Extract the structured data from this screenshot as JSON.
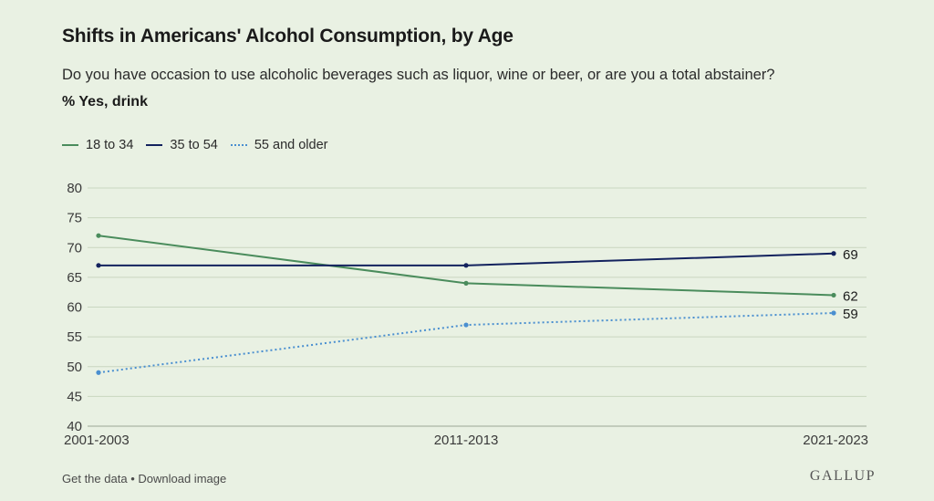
{
  "title": "Shifts in Americans' Alcohol Consumption, by Age",
  "subtitle": "Do you have occasion to use alcoholic beverages such as liquor, wine or beer, or are you a total abstainer?",
  "unit_label": "% Yes, drink",
  "footer": {
    "get_data": "Get the data",
    "separator": "•",
    "download": "Download image"
  },
  "logo": "GALLUP",
  "colors": {
    "background": "#e9f1e3",
    "series_18_34": "#4a8c5c",
    "series_35_54": "#13225e",
    "series_55_plus": "#4a8fd0",
    "grid": "#c9d6c0"
  },
  "chart_data": {
    "type": "line",
    "categories": [
      "2001-2003",
      "2011-2013",
      "2021-2023"
    ],
    "ylim": [
      40,
      80
    ],
    "yticks": [
      40,
      45,
      50,
      55,
      60,
      65,
      70,
      75,
      80
    ],
    "grid": true,
    "legend_position": "top-left",
    "series": [
      {
        "name": "18 to 34",
        "values": [
          72,
          64,
          62
        ],
        "end_label": "62",
        "style": "solid"
      },
      {
        "name": "35 to 54",
        "values": [
          67,
          67,
          69
        ],
        "end_label": "69",
        "style": "solid"
      },
      {
        "name": "55 and older",
        "values": [
          49,
          57,
          59
        ],
        "end_label": "59",
        "style": "dotted"
      }
    ]
  }
}
